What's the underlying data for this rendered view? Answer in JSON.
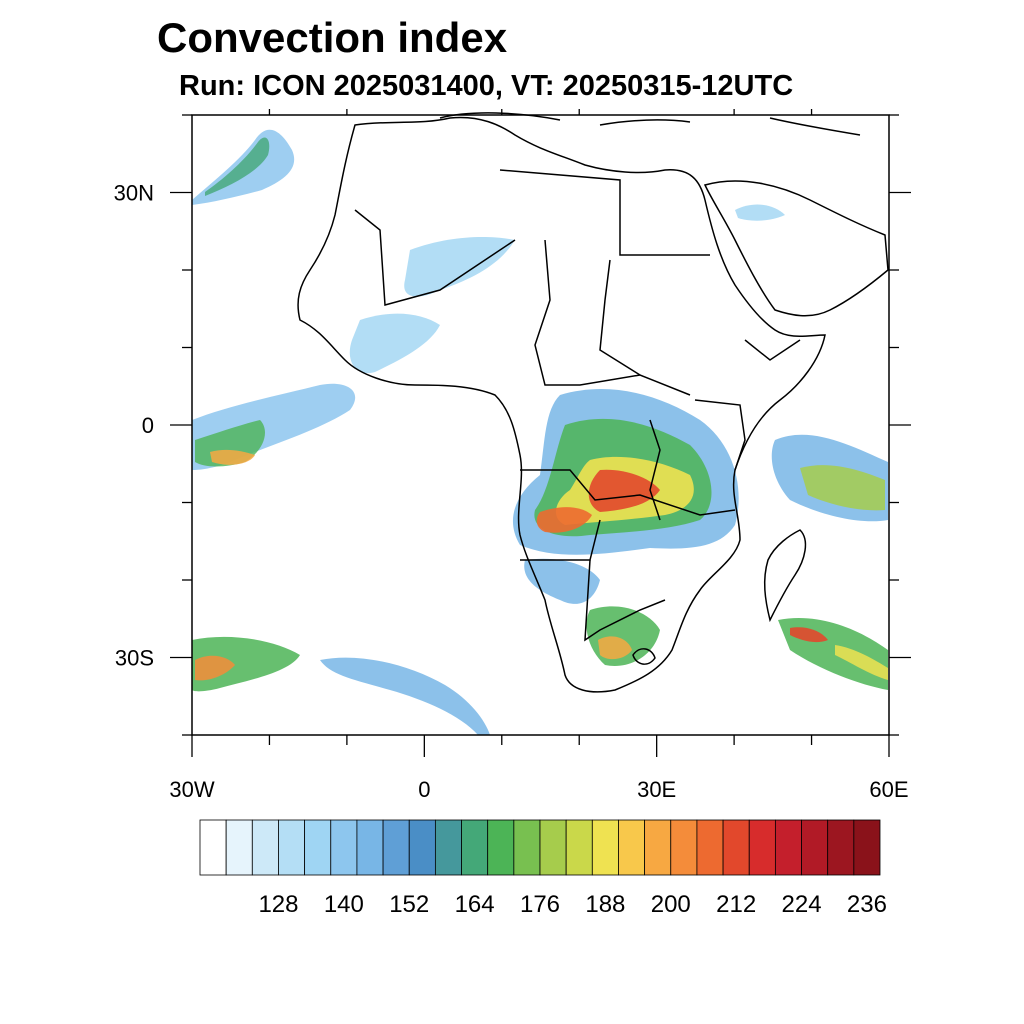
{
  "title": "Convection index",
  "subtitle": "Run: ICON 2025031400,  VT: 20250315-12UTC",
  "map": {
    "lon_range": [
      -30,
      60
    ],
    "lat_range": [
      -40,
      40
    ],
    "x_ticks": [
      {
        "lon": -30,
        "label": "30W"
      },
      {
        "lon": 0,
        "label": "0"
      },
      {
        "lon": 30,
        "label": "30E"
      },
      {
        "lon": 60,
        "label": "60E"
      }
    ],
    "y_ticks": [
      {
        "lat": 30,
        "label": "30N"
      },
      {
        "lat": 0,
        "label": "0"
      },
      {
        "lat": -30,
        "label": "30S"
      }
    ]
  },
  "colorbar": {
    "colors": [
      "#ffffff",
      "#e6f4fc",
      "#cde9f8",
      "#b4def5",
      "#9fd5f3",
      "#8dc6ee",
      "#78b6e6",
      "#5f9fd6",
      "#4a8ec6",
      "#45989c",
      "#44a878",
      "#4cb456",
      "#78c050",
      "#a6cc4c",
      "#cad84a",
      "#efe251",
      "#f8c84b",
      "#f7a842",
      "#f48c3a",
      "#ed6a30",
      "#e2482c",
      "#d72c2c",
      "#c41f2c",
      "#b11a26",
      "#9c1620",
      "#8a121a"
    ],
    "labels": [
      "128",
      "140",
      "152",
      "164",
      "176",
      "188",
      "200",
      "212",
      "224",
      "236"
    ]
  }
}
